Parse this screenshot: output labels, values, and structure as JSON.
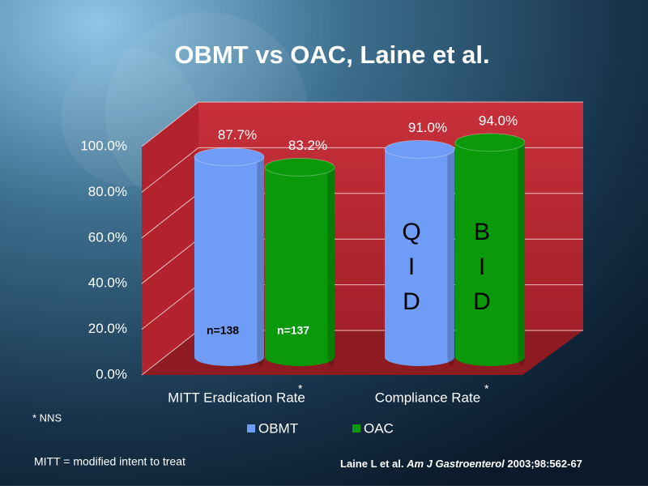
{
  "chart_data": {
    "type": "bar3d",
    "title": "OBMT vs OAC, Laine et al.",
    "categories": [
      "MITT Eradication Rate",
      "Compliance Rate"
    ],
    "series": [
      {
        "name": "OBMT",
        "color": "#6f9cf7",
        "values": [
          87.7,
          91.0
        ],
        "value_labels": [
          "87.7%",
          "91.0%"
        ],
        "bar_texts": [
          "n=138",
          "QID"
        ]
      },
      {
        "name": "OAC",
        "color": "#0a990a",
        "values": [
          83.2,
          94.0
        ],
        "value_labels": [
          "83.2%",
          "94.0%"
        ],
        "bar_texts": [
          "n=137",
          "BID"
        ]
      }
    ],
    "ylim": [
      0,
      100
    ],
    "yticks": [
      {
        "value": 0,
        "label": "0.0%"
      },
      {
        "value": 20,
        "label": "20.0%"
      },
      {
        "value": 40,
        "label": "40.0%"
      },
      {
        "value": 60,
        "label": "60.0%"
      },
      {
        "value": 80,
        "label": "80.0%"
      },
      {
        "value": 100,
        "label": "100.0%"
      }
    ],
    "grid": true,
    "legend": "bottom",
    "category_marks": [
      "*",
      "*"
    ],
    "footnotes": [
      "* NNS",
      "MITT = modified intent to treat"
    ],
    "citation": [
      "Laine L et al. ",
      "Am J Gastroenterol",
      " 2003;98:562-67"
    ]
  }
}
